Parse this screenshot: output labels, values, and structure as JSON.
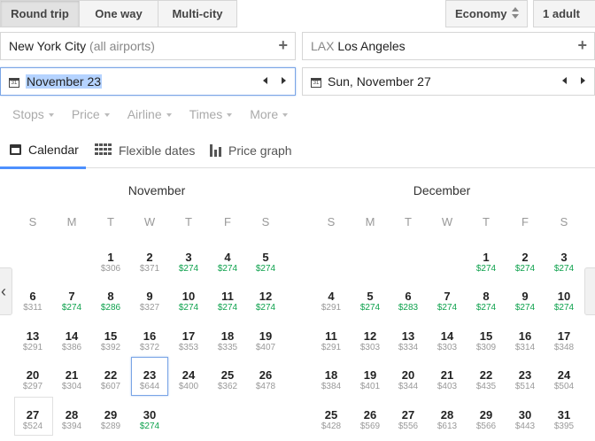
{
  "trip_types": [
    "Round trip",
    "One way",
    "Multi-city"
  ],
  "cabin": "Economy",
  "passengers": "1 adult",
  "origin": {
    "city": "New York City",
    "qualifier": "(all airports)"
  },
  "destination": {
    "code": "LAX",
    "city": "Los Angeles"
  },
  "depart_date": "November 23",
  "return_date": "Sun, November 27",
  "filters": [
    "Stops",
    "Price",
    "Airline",
    "Times",
    "More"
  ],
  "tabs": [
    "Calendar",
    "Flexible dates",
    "Price graph"
  ],
  "weekdays": [
    "S",
    "M",
    "T",
    "W",
    "T",
    "F",
    "S"
  ],
  "months": [
    {
      "name": "November",
      "start_dow": 2,
      "days": [
        [
          "1",
          "$306",
          false
        ],
        [
          "2",
          "$371",
          false
        ],
        [
          "3",
          "$274",
          true
        ],
        [
          "4",
          "$274",
          true
        ],
        [
          "5",
          "$274",
          true
        ],
        [
          "6",
          "$311",
          false
        ],
        [
          "7",
          "$274",
          true
        ],
        [
          "8",
          "$286",
          true
        ],
        [
          "9",
          "$327",
          false
        ],
        [
          "10",
          "$274",
          true
        ],
        [
          "11",
          "$274",
          true
        ],
        [
          "12",
          "$274",
          true
        ],
        [
          "13",
          "$291",
          false
        ],
        [
          "14",
          "$386",
          false
        ],
        [
          "15",
          "$392",
          false
        ],
        [
          "16",
          "$372",
          false
        ],
        [
          "17",
          "$353",
          false
        ],
        [
          "18",
          "$335",
          false
        ],
        [
          "19",
          "$407",
          false
        ],
        [
          "20",
          "$297",
          false
        ],
        [
          "21",
          "$304",
          false
        ],
        [
          "22",
          "$607",
          false
        ],
        [
          "23",
          "$644",
          false
        ],
        [
          "24",
          "$400",
          false
        ],
        [
          "25",
          "$362",
          false
        ],
        [
          "26",
          "$478",
          false
        ],
        [
          "27",
          "$524",
          false
        ],
        [
          "28",
          "$394",
          false
        ],
        [
          "29",
          "$289",
          false
        ],
        [
          "30",
          "$274",
          true
        ]
      ]
    },
    {
      "name": "December",
      "start_dow": 4,
      "days": [
        [
          "1",
          "$274",
          true
        ],
        [
          "2",
          "$274",
          true
        ],
        [
          "3",
          "$274",
          true
        ],
        [
          "4",
          "$291",
          false
        ],
        [
          "5",
          "$274",
          true
        ],
        [
          "6",
          "$283",
          true
        ],
        [
          "7",
          "$274",
          true
        ],
        [
          "8",
          "$274",
          true
        ],
        [
          "9",
          "$274",
          true
        ],
        [
          "10",
          "$274",
          true
        ],
        [
          "11",
          "$291",
          false
        ],
        [
          "12",
          "$303",
          false
        ],
        [
          "13",
          "$334",
          false
        ],
        [
          "14",
          "$303",
          false
        ],
        [
          "15",
          "$309",
          false
        ],
        [
          "16",
          "$314",
          false
        ],
        [
          "17",
          "$348",
          false
        ],
        [
          "18",
          "$384",
          false
        ],
        [
          "19",
          "$401",
          false
        ],
        [
          "20",
          "$344",
          false
        ],
        [
          "21",
          "$403",
          false
        ],
        [
          "22",
          "$435",
          false
        ],
        [
          "23",
          "$514",
          false
        ],
        [
          "24",
          "$504",
          false
        ],
        [
          "25",
          "$428",
          false
        ],
        [
          "26",
          "$569",
          false
        ],
        [
          "27",
          "$556",
          false
        ],
        [
          "28",
          "$613",
          false
        ],
        [
          "29",
          "$566",
          false
        ],
        [
          "30",
          "$443",
          false
        ],
        [
          "31",
          "$395",
          false
        ]
      ]
    }
  ],
  "colors": {
    "cheap_price": "#0da14c",
    "regular_price": "#999999",
    "accent": "#4d90fe"
  }
}
